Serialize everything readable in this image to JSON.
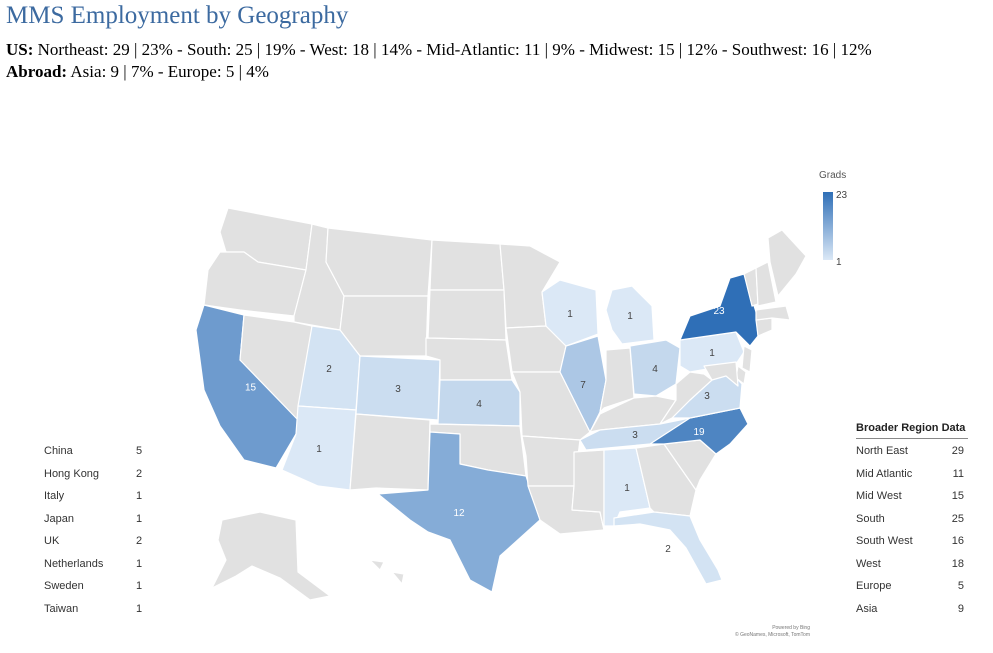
{
  "title": "MMS Employment by Geography",
  "us_line": {
    "label": "US:",
    "text": "Northeast: 29 | 23% - South: 25 | 19% - West: 18 | 14% - Mid-Atlantic: 11 | 9% - Midwest: 15 | 12% - Southwest: 16 | 12%"
  },
  "abroad_line": {
    "label": "Abroad:",
    "text": "Asia: 9 |  7% - Europe: 5 | 4%"
  },
  "legend": {
    "title": "Grads",
    "max": "23",
    "min": "1"
  },
  "map": {
    "color_low": "#dbe8f6",
    "color_high": "#2f6fb7",
    "no_data_color": "#e1e1e1",
    "min_value": 1,
    "max_value": 23,
    "states": [
      {
        "code": "WA",
        "value": null
      },
      {
        "code": "OR",
        "value": null
      },
      {
        "code": "CA",
        "value": 15
      },
      {
        "code": "ID",
        "value": null
      },
      {
        "code": "NV",
        "value": null
      },
      {
        "code": "MT",
        "value": null
      },
      {
        "code": "WY",
        "value": null
      },
      {
        "code": "UT",
        "value": 2
      },
      {
        "code": "AZ",
        "value": 1
      },
      {
        "code": "CO",
        "value": 3
      },
      {
        "code": "NM",
        "value": null
      },
      {
        "code": "ND",
        "value": null
      },
      {
        "code": "SD",
        "value": null
      },
      {
        "code": "NE",
        "value": null
      },
      {
        "code": "KS",
        "value": 4
      },
      {
        "code": "OK",
        "value": null
      },
      {
        "code": "TX",
        "value": 12
      },
      {
        "code": "MN",
        "value": null
      },
      {
        "code": "IA",
        "value": null
      },
      {
        "code": "MO",
        "value": null
      },
      {
        "code": "AR",
        "value": null
      },
      {
        "code": "LA",
        "value": null
      },
      {
        "code": "WI",
        "value": 1
      },
      {
        "code": "IL",
        "value": 7
      },
      {
        "code": "MI",
        "value": 1
      },
      {
        "code": "IN",
        "value": null
      },
      {
        "code": "OH",
        "value": 4
      },
      {
        "code": "KY",
        "value": null
      },
      {
        "code": "TN",
        "value": 3
      },
      {
        "code": "MS",
        "value": null
      },
      {
        "code": "AL",
        "value": 1
      },
      {
        "code": "GA",
        "value": null
      },
      {
        "code": "FL",
        "value": 2
      },
      {
        "code": "SC",
        "value": null
      },
      {
        "code": "NC",
        "value": 19
      },
      {
        "code": "VA",
        "value": 3
      },
      {
        "code": "WV",
        "value": null
      },
      {
        "code": "PA",
        "value": 1
      },
      {
        "code": "NY",
        "value": 23
      },
      {
        "code": "NJ",
        "value": null
      },
      {
        "code": "ME",
        "value": null
      },
      {
        "code": "NH",
        "value": null
      },
      {
        "code": "VT",
        "value": null
      },
      {
        "code": "MA",
        "value": null
      },
      {
        "code": "CT",
        "value": null
      },
      {
        "code": "DE",
        "value": null
      },
      {
        "code": "MD",
        "value": null
      },
      {
        "code": "AK",
        "value": null
      },
      {
        "code": "HI",
        "value": null
      }
    ]
  },
  "countries_table": [
    {
      "name": "China",
      "value": "5"
    },
    {
      "name": "Hong Kong",
      "value": "2"
    },
    {
      "name": "Italy",
      "value": "1"
    },
    {
      "name": "Japan",
      "value": "1"
    },
    {
      "name": "UK",
      "value": "2"
    },
    {
      "name": "Netherlands",
      "value": "1"
    },
    {
      "name": "Sweden",
      "value": "1"
    },
    {
      "name": "Taiwan",
      "value": "1"
    }
  ],
  "regions_table": {
    "header": "Broader Region Data",
    "rows": [
      {
        "name": "North East",
        "value": "29"
      },
      {
        "name": "Mid Atlantic",
        "value": "11"
      },
      {
        "name": "Mid West",
        "value": "15"
      },
      {
        "name": "South",
        "value": "25"
      },
      {
        "name": "South West",
        "value": "16"
      },
      {
        "name": "West",
        "value": "18"
      },
      {
        "name": "Europe",
        "value": "5"
      },
      {
        "name": "Asia",
        "value": "9"
      }
    ]
  },
  "credit": {
    "line1": "Powered by Bing",
    "line2": "© GeoNames, Microsoft, TomTom"
  }
}
